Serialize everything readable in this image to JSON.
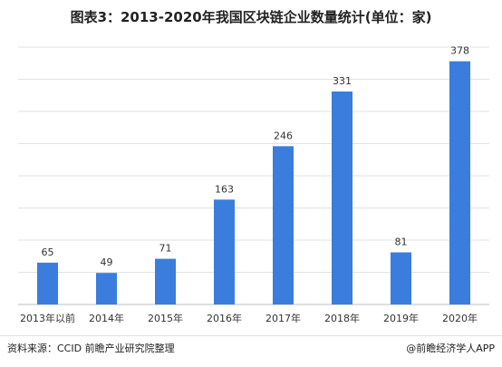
{
  "chart_data": {
    "type": "bar",
    "title": "图表3：2013-2020年我国区块链企业数量统计(单位：家)",
    "categories": [
      "2013年以前",
      "2014年",
      "2015年",
      "2016年",
      "2017年",
      "2018年",
      "2019年",
      "2020年"
    ],
    "values": [
      65,
      49,
      71,
      163,
      246,
      331,
      81,
      378
    ],
    "ylim": [
      0,
      400
    ],
    "grid": true,
    "bar_color": "#3a7ddc"
  },
  "footer": {
    "source": "资料来源：CCID 前瞻产业研究院整理",
    "brand": "@前瞻经济学人APP"
  }
}
